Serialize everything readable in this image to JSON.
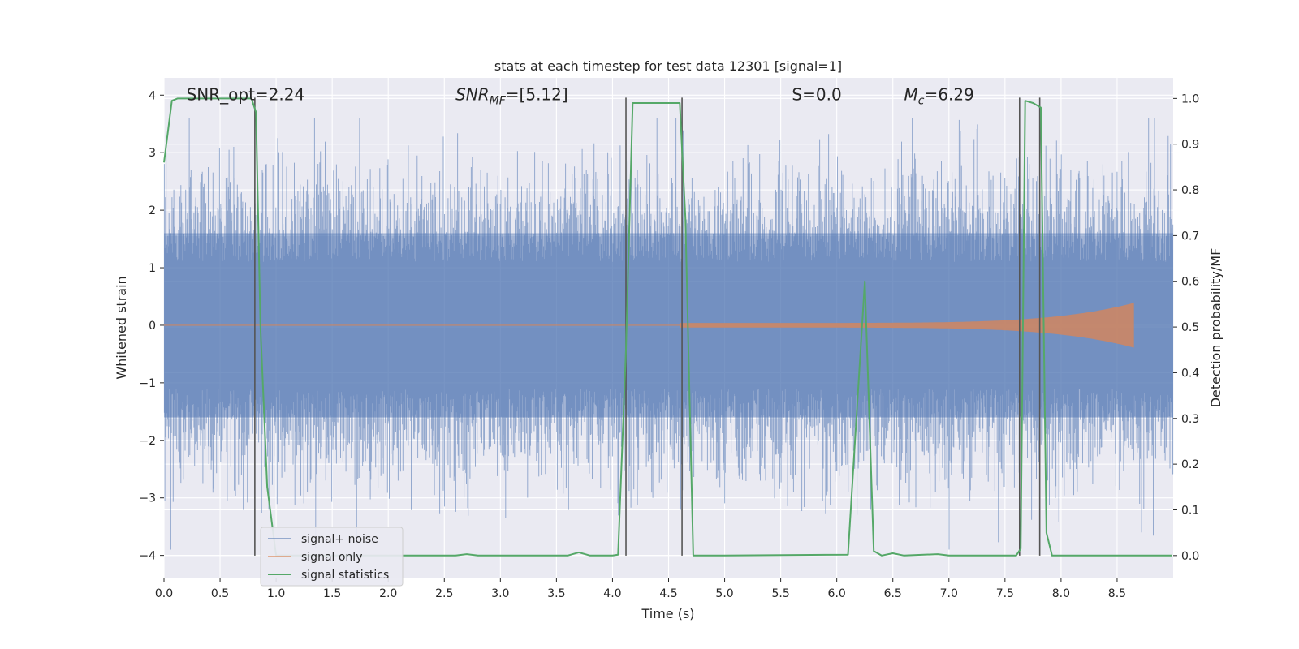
{
  "chart_data": {
    "type": "line",
    "title": "stats at each timestep for test data 12301 [signal=1]",
    "xlabel": "Time (s)",
    "ylabel_left": "Whitened strain",
    "ylabel_right": "Detection probability/MF",
    "xlim": [
      0,
      9.0
    ],
    "ylim_left": [
      -4.4,
      4.3
    ],
    "ylim_right": [
      -0.05,
      1.045
    ],
    "x_ticks": [
      0.0,
      0.5,
      1.0,
      1.5,
      2.0,
      2.5,
      3.0,
      3.5,
      4.0,
      4.5,
      5.0,
      5.5,
      6.0,
      6.5,
      7.0,
      7.5,
      8.0,
      8.5
    ],
    "x_tick_labels": [
      "0.0",
      "0.5",
      "1.0",
      "1.5",
      "2.0",
      "2.5",
      "3.0",
      "3.5",
      "4.0",
      "4.5",
      "5.0",
      "5.5",
      "6.0",
      "6.5",
      "7.0",
      "7.5",
      "8.0",
      "8.5"
    ],
    "y_left_ticks": [
      4,
      3,
      2,
      1,
      0,
      -1,
      -2,
      -3,
      -4
    ],
    "y_left_tick_labels": [
      "4",
      "3",
      "2",
      "1",
      "0",
      "−1",
      "−2",
      "−3",
      "−4"
    ],
    "y_right_ticks": [
      1.0,
      0.9,
      0.8,
      0.7,
      0.6,
      0.5,
      0.4,
      0.3,
      0.2,
      0.1,
      0.0
    ],
    "y_right_tick_labels": [
      "1.0",
      "0.9",
      "0.8",
      "0.7",
      "0.6",
      "0.5",
      "0.4",
      "0.3",
      "0.2",
      "0.1",
      "0.0"
    ],
    "grid": true,
    "legend_position": "lower-left",
    "annotations": [
      {
        "text": "SNR_opt=2.24",
        "x": 0.2,
        "y": 4.0
      },
      {
        "text": "SNR_MF=[5.12]",
        "x": 2.6,
        "y": 4.0
      },
      {
        "text": "S=0.0",
        "x": 5.6,
        "y": 4.0
      },
      {
        "text": "M_c=6.29",
        "x": 6.6,
        "y": 4.0
      }
    ],
    "vertical_lines_x": [
      0.81,
      4.12,
      4.62,
      7.63,
      7.81
    ],
    "series": [
      {
        "name": "signal+ noise",
        "color": "#4c72b0",
        "axis": "left",
        "kind": "dense-noise",
        "approx_envelope": [
          -3.9,
          3.6
        ],
        "typical_band": [
          -1.6,
          1.6
        ]
      },
      {
        "name": "signal only",
        "color": "#dd8452",
        "axis": "left",
        "kind": "chirp",
        "x_start": 4.6,
        "x_end": 8.65,
        "peak_amplitude": 0.35
      },
      {
        "name": "signal statistics",
        "color": "#55a868",
        "axis": "right",
        "x": [
          0.0,
          0.07,
          0.12,
          0.78,
          0.82,
          0.86,
          0.92,
          1.0,
          2.6,
          2.7,
          2.8,
          3.6,
          3.7,
          3.8,
          3.9,
          4.0,
          4.05,
          4.12,
          4.18,
          4.25,
          4.6,
          4.65,
          4.72,
          5.0,
          6.1,
          6.25,
          6.33,
          6.4,
          6.5,
          6.6,
          6.9,
          7.0,
          7.6,
          7.64,
          7.68,
          7.75,
          7.82,
          7.87,
          7.92,
          8.0,
          8.99
        ],
        "values": [
          0.86,
          0.995,
          1.0,
          1.0,
          0.97,
          0.5,
          0.15,
          0.0,
          0.0,
          0.003,
          0.0,
          0.0,
          0.007,
          0.0,
          0.0,
          0.0,
          0.002,
          0.45,
          0.99,
          0.99,
          0.99,
          0.74,
          0.0,
          0.0,
          0.002,
          0.6,
          0.01,
          0.0,
          0.005,
          0.0,
          0.003,
          0.0,
          0.0,
          0.015,
          0.995,
          0.99,
          0.98,
          0.05,
          0.0,
          0.0,
          0.0
        ]
      }
    ]
  }
}
